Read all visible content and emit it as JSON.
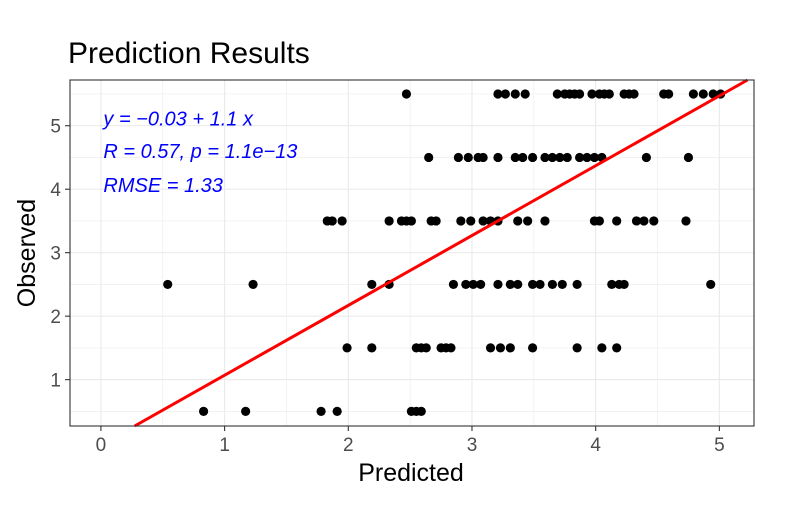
{
  "chart_data": {
    "type": "scatter",
    "title": "Prediction Results",
    "xlabel": "Predicted",
    "ylabel": "Observed",
    "xlim": [
      -0.25,
      5.28
    ],
    "ylim": [
      0.27,
      5.72
    ],
    "x_ticks": [
      0,
      1,
      2,
      3,
      4,
      5
    ],
    "y_ticks": [
      1,
      2,
      3,
      4,
      5
    ],
    "x_tick_labels": [
      "0",
      "1",
      "2",
      "3",
      "4",
      "5"
    ],
    "y_tick_labels": [
      "1",
      "2",
      "3",
      "4",
      "5"
    ],
    "grid": true,
    "legend": "none",
    "points": [
      {
        "x": 0.83,
        "y": 0.5
      },
      {
        "x": 1.17,
        "y": 0.5
      },
      {
        "x": 1.78,
        "y": 0.5
      },
      {
        "x": 1.91,
        "y": 0.5
      },
      {
        "x": 2.51,
        "y": 0.5
      },
      {
        "x": 2.55,
        "y": 0.5
      },
      {
        "x": 2.59,
        "y": 0.5
      },
      {
        "x": 1.99,
        "y": 1.5
      },
      {
        "x": 2.19,
        "y": 1.5
      },
      {
        "x": 2.55,
        "y": 1.5
      },
      {
        "x": 2.59,
        "y": 1.5
      },
      {
        "x": 2.63,
        "y": 1.5
      },
      {
        "x": 2.75,
        "y": 1.5
      },
      {
        "x": 2.79,
        "y": 1.5
      },
      {
        "x": 2.83,
        "y": 1.5
      },
      {
        "x": 3.15,
        "y": 1.5
      },
      {
        "x": 3.23,
        "y": 1.5
      },
      {
        "x": 3.31,
        "y": 1.5
      },
      {
        "x": 3.49,
        "y": 1.5
      },
      {
        "x": 3.85,
        "y": 1.5
      },
      {
        "x": 4.05,
        "y": 1.5
      },
      {
        "x": 4.17,
        "y": 1.5
      },
      {
        "x": 0.54,
        "y": 2.5
      },
      {
        "x": 1.23,
        "y": 2.5
      },
      {
        "x": 2.19,
        "y": 2.5
      },
      {
        "x": 2.33,
        "y": 2.5
      },
      {
        "x": 2.85,
        "y": 2.5
      },
      {
        "x": 2.95,
        "y": 2.5
      },
      {
        "x": 3.01,
        "y": 2.5
      },
      {
        "x": 3.07,
        "y": 2.5
      },
      {
        "x": 3.21,
        "y": 2.5
      },
      {
        "x": 3.31,
        "y": 2.5
      },
      {
        "x": 3.37,
        "y": 2.5
      },
      {
        "x": 3.49,
        "y": 2.5
      },
      {
        "x": 3.55,
        "y": 2.5
      },
      {
        "x": 3.65,
        "y": 2.5
      },
      {
        "x": 3.73,
        "y": 2.5
      },
      {
        "x": 3.85,
        "y": 2.5
      },
      {
        "x": 4.13,
        "y": 2.5
      },
      {
        "x": 4.19,
        "y": 2.5
      },
      {
        "x": 4.23,
        "y": 2.5
      },
      {
        "x": 4.93,
        "y": 2.5
      },
      {
        "x": 1.83,
        "y": 3.5
      },
      {
        "x": 1.87,
        "y": 3.5
      },
      {
        "x": 1.95,
        "y": 3.5
      },
      {
        "x": 2.33,
        "y": 3.5
      },
      {
        "x": 2.43,
        "y": 3.5
      },
      {
        "x": 2.47,
        "y": 3.5
      },
      {
        "x": 2.51,
        "y": 3.5
      },
      {
        "x": 2.67,
        "y": 3.5
      },
      {
        "x": 2.71,
        "y": 3.5
      },
      {
        "x": 2.91,
        "y": 3.5
      },
      {
        "x": 2.99,
        "y": 3.5
      },
      {
        "x": 3.09,
        "y": 3.5
      },
      {
        "x": 3.15,
        "y": 3.5
      },
      {
        "x": 3.21,
        "y": 3.5
      },
      {
        "x": 3.37,
        "y": 3.5
      },
      {
        "x": 3.45,
        "y": 3.5
      },
      {
        "x": 3.59,
        "y": 3.5
      },
      {
        "x": 3.99,
        "y": 3.5
      },
      {
        "x": 4.03,
        "y": 3.5
      },
      {
        "x": 4.17,
        "y": 3.5
      },
      {
        "x": 4.33,
        "y": 3.5
      },
      {
        "x": 4.39,
        "y": 3.5
      },
      {
        "x": 4.47,
        "y": 3.5
      },
      {
        "x": 4.73,
        "y": 3.5
      },
      {
        "x": 2.65,
        "y": 4.5
      },
      {
        "x": 2.89,
        "y": 4.5
      },
      {
        "x": 2.97,
        "y": 4.5
      },
      {
        "x": 3.05,
        "y": 4.5
      },
      {
        "x": 3.09,
        "y": 4.5
      },
      {
        "x": 3.21,
        "y": 4.5
      },
      {
        "x": 3.35,
        "y": 4.5
      },
      {
        "x": 3.41,
        "y": 4.5
      },
      {
        "x": 3.49,
        "y": 4.5
      },
      {
        "x": 3.59,
        "y": 4.5
      },
      {
        "x": 3.65,
        "y": 4.5
      },
      {
        "x": 3.71,
        "y": 4.5
      },
      {
        "x": 3.77,
        "y": 4.5
      },
      {
        "x": 3.87,
        "y": 4.5
      },
      {
        "x": 3.93,
        "y": 4.5
      },
      {
        "x": 3.99,
        "y": 4.5
      },
      {
        "x": 4.05,
        "y": 4.5
      },
      {
        "x": 4.41,
        "y": 4.5
      },
      {
        "x": 4.75,
        "y": 4.5
      },
      {
        "x": 2.47,
        "y": 5.5
      },
      {
        "x": 3.21,
        "y": 5.5
      },
      {
        "x": 3.27,
        "y": 5.5
      },
      {
        "x": 3.35,
        "y": 5.5
      },
      {
        "x": 3.43,
        "y": 5.5
      },
      {
        "x": 3.69,
        "y": 5.5
      },
      {
        "x": 3.75,
        "y": 5.5
      },
      {
        "x": 3.79,
        "y": 5.5
      },
      {
        "x": 3.83,
        "y": 5.5
      },
      {
        "x": 3.87,
        "y": 5.5
      },
      {
        "x": 3.97,
        "y": 5.5
      },
      {
        "x": 4.03,
        "y": 5.5
      },
      {
        "x": 4.07,
        "y": 5.5
      },
      {
        "x": 4.11,
        "y": 5.5
      },
      {
        "x": 4.23,
        "y": 5.5
      },
      {
        "x": 4.27,
        "y": 5.5
      },
      {
        "x": 4.31,
        "y": 5.5
      },
      {
        "x": 4.55,
        "y": 5.5
      },
      {
        "x": 4.59,
        "y": 5.5
      },
      {
        "x": 4.79,
        "y": 5.5
      },
      {
        "x": 4.87,
        "y": 5.5
      },
      {
        "x": 4.95,
        "y": 5.5
      },
      {
        "x": 5.01,
        "y": 5.5
      }
    ],
    "regression": {
      "intercept": -0.03,
      "slope": 1.1,
      "color": "#ff0000"
    },
    "annotations": {
      "equation": "y = −0.03 + 1.1 x",
      "stats": "R = 0.57, p = 1.1e−13",
      "rmse": "RMSE = 1.33",
      "color": "#0000ff"
    },
    "point_color": "#000000",
    "panel_border_color": "#333333",
    "grid_color": "#ebebeb"
  }
}
